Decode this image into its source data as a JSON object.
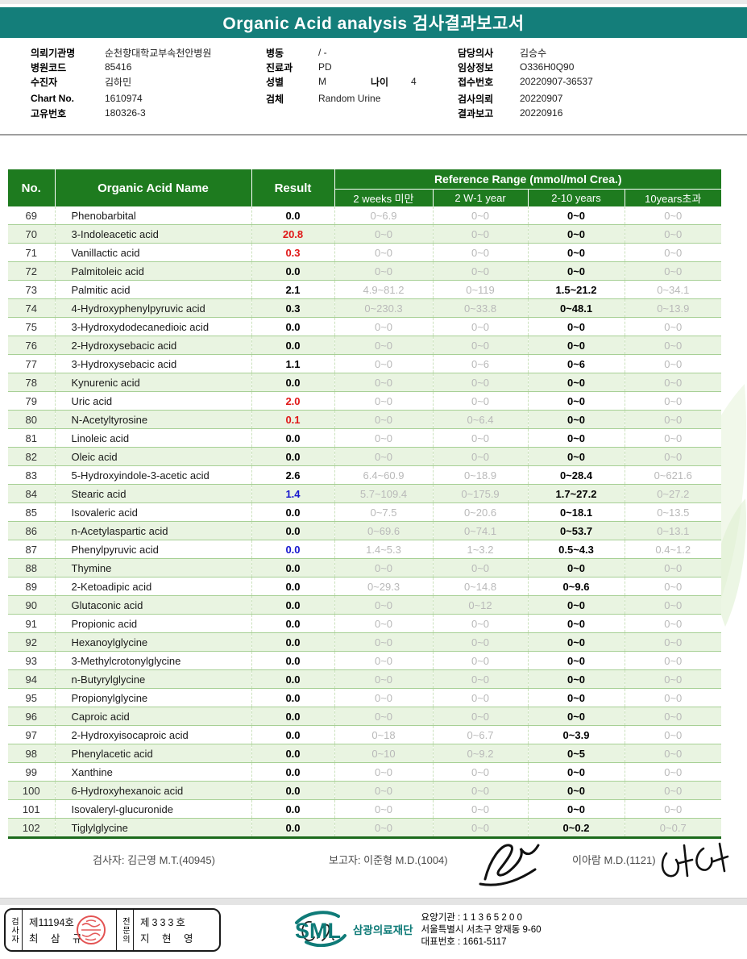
{
  "page": {
    "title": "Organic Acid analysis 검사결과보고서"
  },
  "colors": {
    "title_teal": "#147E7A",
    "table_header_green": "#1E7B1F",
    "row_alt_green": "#E9F4E1",
    "result_high_red": "#E01717",
    "result_low_blue": "#1717CE",
    "reference_gray": "#B9B9B9"
  },
  "icons": {
    "logo": "sml-logo",
    "seal": "red-seal-stamp",
    "watermark": "leaf-watermark",
    "signatures": [
      "reporter-signature",
      "director-signature",
      "specialist-signature"
    ]
  },
  "info": {
    "left": [
      {
        "label": "의뢰기관명",
        "value": "순천향대학교부속천안병원"
      },
      {
        "label": "병원코드",
        "value": "85416"
      },
      {
        "label": "수진자",
        "value": "김하민"
      },
      {
        "label": "Chart No.",
        "value": "1610974"
      },
      {
        "label": "고유번호",
        "value": "180326-3"
      }
    ],
    "middle": [
      {
        "label": "병동",
        "value": "/ -"
      },
      {
        "label": "진료과",
        "value": "PD"
      },
      {
        "label": "성별",
        "value": "M"
      },
      {
        "label": "검체",
        "value": "Random Urine"
      }
    ],
    "age": {
      "label": "나이",
      "value": "4"
    },
    "right": [
      {
        "label": "담당의사",
        "value": "김승수"
      },
      {
        "label": "임상정보",
        "value": "O336H0Q90"
      },
      {
        "label": "접수번호",
        "value": "20220907-36537"
      },
      {
        "label": "검사의뢰",
        "value": "20220907"
      },
      {
        "label": "결과보고",
        "value": "20220916"
      }
    ]
  },
  "table": {
    "headers": {
      "no": "No.",
      "name": "Organic Acid Name",
      "result": "Result",
      "ref_range": "Reference Range (mmol/mol Crea.)",
      "sub": [
        "2 weeks 미만",
        "2 W-1 year",
        "2-10 years",
        "10years초과"
      ]
    },
    "rows": [
      {
        "no": "69",
        "name": "Phenobarbital",
        "result": "0.0",
        "flag": "normal",
        "refs": [
          "0~6.9",
          "0~0",
          "0~0",
          "0~0"
        ]
      },
      {
        "no": "70",
        "name": "3-Indoleacetic acid",
        "result": "20.8",
        "flag": "high",
        "refs": [
          "0~0",
          "0~0",
          "0~0",
          "0~0"
        ]
      },
      {
        "no": "71",
        "name": "Vanillactic acid",
        "result": "0.3",
        "flag": "high",
        "refs": [
          "0~0",
          "0~0",
          "0~0",
          "0~0"
        ]
      },
      {
        "no": "72",
        "name": "Palmitoleic acid",
        "result": "0.0",
        "flag": "normal",
        "refs": [
          "0~0",
          "0~0",
          "0~0",
          "0~0"
        ]
      },
      {
        "no": "73",
        "name": "Palmitic acid",
        "result": "2.1",
        "flag": "normal",
        "refs": [
          "4.9~81.2",
          "0~119",
          "1.5~21.2",
          "0~34.1"
        ]
      },
      {
        "no": "74",
        "name": "4-Hydroxyphenylpyruvic acid",
        "result": "0.3",
        "flag": "normal",
        "refs": [
          "0~230.3",
          "0~33.8",
          "0~48.1",
          "0~13.9"
        ]
      },
      {
        "no": "75",
        "name": "3-Hydroxydodecanedioic acid",
        "result": "0.0",
        "flag": "normal",
        "refs": [
          "0~0",
          "0~0",
          "0~0",
          "0~0"
        ]
      },
      {
        "no": "76",
        "name": "2-Hydroxysebacic acid",
        "result": "0.0",
        "flag": "normal",
        "refs": [
          "0~0",
          "0~0",
          "0~0",
          "0~0"
        ]
      },
      {
        "no": "77",
        "name": "3-Hydroxysebacic acid",
        "result": "1.1",
        "flag": "normal",
        "refs": [
          "0~0",
          "0~6",
          "0~6",
          "0~0"
        ]
      },
      {
        "no": "78",
        "name": "Kynurenic acid",
        "result": "0.0",
        "flag": "normal",
        "refs": [
          "0~0",
          "0~0",
          "0~0",
          "0~0"
        ]
      },
      {
        "no": "79",
        "name": "Uric acid",
        "result": "2.0",
        "flag": "high",
        "refs": [
          "0~0",
          "0~0",
          "0~0",
          "0~0"
        ]
      },
      {
        "no": "80",
        "name": "N-Acetyltyrosine",
        "result": "0.1",
        "flag": "high",
        "refs": [
          "0~0",
          "0~6.4",
          "0~0",
          "0~0"
        ]
      },
      {
        "no": "81",
        "name": "Linoleic acid",
        "result": "0.0",
        "flag": "normal",
        "refs": [
          "0~0",
          "0~0",
          "0~0",
          "0~0"
        ]
      },
      {
        "no": "82",
        "name": "Oleic acid",
        "result": "0.0",
        "flag": "normal",
        "refs": [
          "0~0",
          "0~0",
          "0~0",
          "0~0"
        ]
      },
      {
        "no": "83",
        "name": "5-Hydroxyindole-3-acetic acid",
        "result": "2.6",
        "flag": "normal",
        "refs": [
          "6.4~60.9",
          "0~18.9",
          "0~28.4",
          "0~621.6"
        ]
      },
      {
        "no": "84",
        "name": "Stearic acid",
        "result": "1.4",
        "flag": "low",
        "refs": [
          "5.7~109.4",
          "0~175.9",
          "1.7~27.2",
          "0~27.2"
        ]
      },
      {
        "no": "85",
        "name": "Isovaleric acid",
        "result": "0.0",
        "flag": "normal",
        "refs": [
          "0~7.5",
          "0~20.6",
          "0~18.1",
          "0~13.5"
        ]
      },
      {
        "no": "86",
        "name": "n-Acetylaspartic acid",
        "result": "0.0",
        "flag": "normal",
        "refs": [
          "0~69.6",
          "0~74.1",
          "0~53.7",
          "0~13.1"
        ]
      },
      {
        "no": "87",
        "name": "Phenylpyruvic acid",
        "result": "0.0",
        "flag": "low",
        "refs": [
          "1.4~5.3",
          "1~3.2",
          "0.5~4.3",
          "0.4~1.2"
        ]
      },
      {
        "no": "88",
        "name": "Thymine",
        "result": "0.0",
        "flag": "normal",
        "refs": [
          "0~0",
          "0~0",
          "0~0",
          "0~0"
        ]
      },
      {
        "no": "89",
        "name": "2-Ketoadipic acid",
        "result": "0.0",
        "flag": "normal",
        "refs": [
          "0~29.3",
          "0~14.8",
          "0~9.6",
          "0~0"
        ]
      },
      {
        "no": "90",
        "name": "Glutaconic acid",
        "result": "0.0",
        "flag": "normal",
        "refs": [
          "0~0",
          "0~12",
          "0~0",
          "0~0"
        ]
      },
      {
        "no": "91",
        "name": "Propionic acid",
        "result": "0.0",
        "flag": "normal",
        "refs": [
          "0~0",
          "0~0",
          "0~0",
          "0~0"
        ]
      },
      {
        "no": "92",
        "name": "Hexanoylglycine",
        "result": "0.0",
        "flag": "normal",
        "refs": [
          "0~0",
          "0~0",
          "0~0",
          "0~0"
        ]
      },
      {
        "no": "93",
        "name": "3-Methylcrotonylglycine",
        "result": "0.0",
        "flag": "normal",
        "refs": [
          "0~0",
          "0~0",
          "0~0",
          "0~0"
        ]
      },
      {
        "no": "94",
        "name": "n-Butyrylglycine",
        "result": "0.0",
        "flag": "normal",
        "refs": [
          "0~0",
          "0~0",
          "0~0",
          "0~0"
        ]
      },
      {
        "no": "95",
        "name": "Propionylglycine",
        "result": "0.0",
        "flag": "normal",
        "refs": [
          "0~0",
          "0~0",
          "0~0",
          "0~0"
        ]
      },
      {
        "no": "96",
        "name": "Caproic acid",
        "result": "0.0",
        "flag": "normal",
        "refs": [
          "0~0",
          "0~0",
          "0~0",
          "0~0"
        ]
      },
      {
        "no": "97",
        "name": "2-Hydroxyisocaproic acid",
        "result": "0.0",
        "flag": "normal",
        "refs": [
          "0~18",
          "0~6.7",
          "0~3.9",
          "0~0"
        ]
      },
      {
        "no": "98",
        "name": "Phenylacetic acid",
        "result": "0.0",
        "flag": "normal",
        "refs": [
          "0~10",
          "0~9.2",
          "0~5",
          "0~0"
        ]
      },
      {
        "no": "99",
        "name": "Xanthine",
        "result": "0.0",
        "flag": "normal",
        "refs": [
          "0~0",
          "0~0",
          "0~0",
          "0~0"
        ]
      },
      {
        "no": "100",
        "name": "6-Hydroxyhexanoic acid",
        "result": "0.0",
        "flag": "normal",
        "refs": [
          "0~0",
          "0~0",
          "0~0",
          "0~0"
        ]
      },
      {
        "no": "101",
        "name": "Isovaleryl-glucuronide",
        "result": "0.0",
        "flag": "normal",
        "refs": [
          "0~0",
          "0~0",
          "0~0",
          "0~0"
        ]
      },
      {
        "no": "102",
        "name": "Tiglylglycine",
        "result": "0.0",
        "flag": "normal",
        "refs": [
          "0~0",
          "0~0",
          "0~0.2",
          "0~0.7"
        ]
      }
    ]
  },
  "footer": {
    "examiner": "검사자: 김근영 M.T.(40945)",
    "reporter": "보고자: 이준형 M.D.(1004)",
    "reporter2": "이아람 M.D.(1121)"
  },
  "bottom": {
    "box": {
      "col1_vertical": "검사자",
      "cert1_no": "제11194호",
      "cert1_name": "최 삼 규",
      "col2_vertical": "전문의",
      "cert2_no": "제333호",
      "cert2_name": "지 현 영"
    },
    "org": {
      "logo": "SML",
      "name": "삼광의료재단",
      "line1": "요양기관 : 1 1 3 6 5 2 0 0",
      "line2": "서울특별시 서초구 양재동 9-60",
      "line3": "대표번호 : 1661-5117"
    }
  }
}
